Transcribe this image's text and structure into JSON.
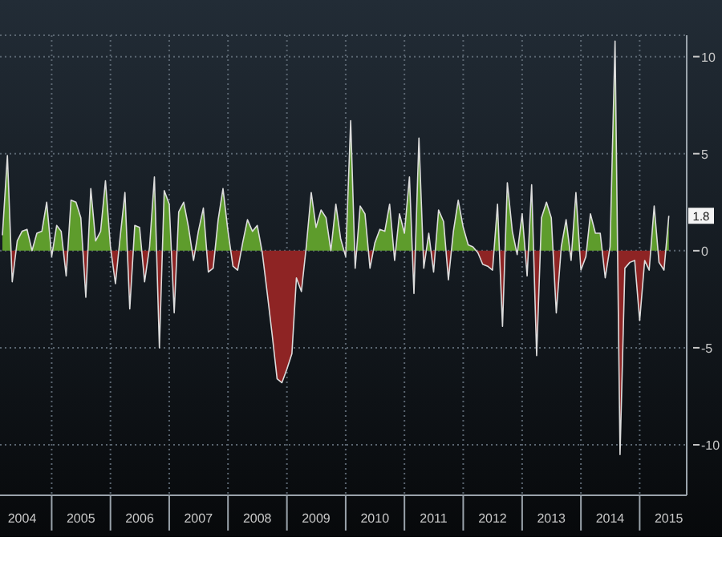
{
  "chart_data": {
    "type": "area",
    "x": [
      "2004-03",
      "2004-04",
      "2004-05",
      "2004-06",
      "2004-07",
      "2004-08",
      "2004-09",
      "2004-10",
      "2004-11",
      "2004-12",
      "2005-01",
      "2005-02",
      "2005-03",
      "2005-04",
      "2005-05",
      "2005-06",
      "2005-07",
      "2005-08",
      "2005-09",
      "2005-10",
      "2005-11",
      "2005-12",
      "2006-01",
      "2006-02",
      "2006-03",
      "2006-04",
      "2006-05",
      "2006-06",
      "2006-07",
      "2006-08",
      "2006-09",
      "2006-10",
      "2006-11",
      "2006-12",
      "2007-01",
      "2007-02",
      "2007-03",
      "2007-04",
      "2007-05",
      "2007-06",
      "2007-07",
      "2007-08",
      "2007-09",
      "2007-10",
      "2007-11",
      "2007-12",
      "2008-01",
      "2008-02",
      "2008-03",
      "2008-04",
      "2008-05",
      "2008-06",
      "2008-07",
      "2008-08",
      "2008-09",
      "2008-10",
      "2008-11",
      "2008-12",
      "2009-01",
      "2009-02",
      "2009-03",
      "2009-04",
      "2009-05",
      "2009-06",
      "2009-07",
      "2009-08",
      "2009-09",
      "2009-10",
      "2009-11",
      "2009-12",
      "2010-01",
      "2010-02",
      "2010-03",
      "2010-04",
      "2010-05",
      "2010-06",
      "2010-07",
      "2010-08",
      "2010-09",
      "2010-10",
      "2010-11",
      "2010-12",
      "2011-01",
      "2011-02",
      "2011-03",
      "2011-04",
      "2011-05",
      "2011-06",
      "2011-07",
      "2011-08",
      "2011-09",
      "2011-10",
      "2011-11",
      "2011-12",
      "2012-01",
      "2012-02",
      "2012-03",
      "2012-04",
      "2012-05",
      "2012-06",
      "2012-07",
      "2012-08",
      "2012-09",
      "2012-10",
      "2012-11",
      "2012-12",
      "2013-01",
      "2013-02",
      "2013-03",
      "2013-04",
      "2013-05",
      "2013-06",
      "2013-07",
      "2013-08",
      "2013-09",
      "2013-10",
      "2013-11",
      "2013-12",
      "2014-01",
      "2014-02",
      "2014-03",
      "2014-04",
      "2014-05",
      "2014-06",
      "2014-07",
      "2014-08",
      "2014-09",
      "2014-10",
      "2014-11",
      "2014-12",
      "2015-01",
      "2015-02",
      "2015-03",
      "2015-04",
      "2015-05",
      "2015-06",
      "2015-07"
    ],
    "series": [
      {
        "values": [
          0.8,
          4.9,
          -1.6,
          0.5,
          1.0,
          1.1,
          0.0,
          0.9,
          1.0,
          2.5,
          -0.3,
          1.3,
          1.0,
          -1.3,
          2.6,
          2.5,
          1.7,
          -2.4,
          3.2,
          0.5,
          1.0,
          3.6,
          0.2,
          -1.7,
          0.6,
          3.0,
          -3.0,
          1.3,
          1.2,
          -1.6,
          0.2,
          3.8,
          -5.0,
          3.1,
          2.4,
          -3.2,
          2.0,
          2.5,
          1.2,
          -0.5,
          1.0,
          2.2,
          -1.1,
          -0.9,
          1.6,
          3.2,
          1.0,
          -0.8,
          -1.0,
          0.4,
          1.6,
          1.0,
          1.3,
          -0.1,
          -2.2,
          -4.3,
          -6.6,
          -6.8,
          -6.1,
          -5.3,
          -1.4,
          -2.1,
          0.2,
          3.0,
          1.2,
          2.1,
          1.7,
          0.0,
          2.4,
          0.6,
          -0.3,
          6.7,
          -0.9,
          2.3,
          1.9,
          -0.9,
          0.4,
          1.1,
          1.0,
          2.4,
          -0.5,
          1.9,
          0.9,
          3.8,
          -2.2,
          5.8,
          -0.9,
          0.9,
          -1.1,
          2.1,
          1.5,
          -1.5,
          1.0,
          2.6,
          1.2,
          0.3,
          0.2,
          -0.1,
          -0.7,
          -0.8,
          -1.0,
          2.4,
          -3.9,
          3.5,
          1.0,
          -0.2,
          1.9,
          -1.3,
          3.4,
          -5.4,
          1.7,
          2.5,
          1.7,
          -3.2,
          0.2,
          1.6,
          -0.5,
          3.0,
          -1.0,
          -0.3,
          1.9,
          0.9,
          0.9,
          -1.4,
          0.2,
          10.8,
          -10.5,
          -0.9,
          -0.6,
          -0.5,
          -3.6,
          -0.5,
          -1.0,
          2.3,
          -0.6,
          -1.0,
          1.8
        ],
        "colors": [
          "#5e9c2c",
          "#5e9c2c",
          "#8e2424",
          "#5e9c2c",
          "#5e9c2c",
          "#5e9c2c",
          "#5e9c2c",
          "#5e9c2c",
          "#5e9c2c",
          "#5e9c2c",
          "#8e2424",
          "#5e9c2c",
          "#5e9c2c",
          "#8e2424",
          "#5e9c2c",
          "#5e9c2c",
          "#5e9c2c",
          "#8e2424",
          "#5e9c2c",
          "#5e9c2c",
          "#5e9c2c",
          "#5e9c2c",
          "#5e9c2c",
          "#8e2424",
          "#5e9c2c",
          "#5e9c2c",
          "#8e2424",
          "#5e9c2c",
          "#5e9c2c",
          "#8e2424",
          "#5e9c2c",
          "#5e9c2c",
          "#8e2424",
          "#5e9c2c",
          "#5e9c2c",
          "#8e2424",
          "#5e9c2c",
          "#5e9c2c",
          "#5e9c2c",
          "#8e2424",
          "#5e9c2c",
          "#5e9c2c",
          "#8e2424",
          "#8e2424",
          "#5e9c2c",
          "#5e9c2c",
          "#5e9c2c",
          "#8e2424",
          "#8e2424",
          "#5e9c2c",
          "#5e9c2c",
          "#5e9c2c",
          "#5e9c2c",
          "#8e2424",
          "#8e2424",
          "#8e2424",
          "#8e2424",
          "#8e2424",
          "#8e2424",
          "#8e2424",
          "#8e2424",
          "#8e2424",
          "#5e9c2c",
          "#5e9c2c",
          "#5e9c2c",
          "#5e9c2c",
          "#5e9c2c",
          "#5e9c2c",
          "#5e9c2c",
          "#5e9c2c",
          "#8e2424",
          "#5e9c2c",
          "#8e2424",
          "#5e9c2c",
          "#5e9c2c",
          "#8e2424",
          "#5e9c2c",
          "#5e9c2c",
          "#5e9c2c",
          "#5e9c2c",
          "#8e2424",
          "#5e9c2c",
          "#5e9c2c",
          "#5e9c2c",
          "#8e2424",
          "#5e9c2c",
          "#8e2424",
          "#5e9c2c",
          "#8e2424",
          "#5e9c2c",
          "#5e9c2c",
          "#8e2424",
          "#5e9c2c",
          "#5e9c2c",
          "#5e9c2c",
          "#5e9c2c",
          "#5e9c2c",
          "#8e2424",
          "#8e2424",
          "#8e2424",
          "#8e2424",
          "#5e9c2c",
          "#8e2424",
          "#5e9c2c",
          "#5e9c2c",
          "#8e2424",
          "#5e9c2c",
          "#8e2424",
          "#5e9c2c",
          "#8e2424",
          "#5e9c2c",
          "#5e9c2c",
          "#5e9c2c",
          "#8e2424",
          "#5e9c2c",
          "#5e9c2c",
          "#8e2424",
          "#5e9c2c",
          "#8e2424",
          "#8e2424",
          "#5e9c2c",
          "#5e9c2c",
          "#5e9c2c",
          "#8e2424",
          "#5e9c2c",
          "#5e9c2c",
          "#8e2424",
          "#8e2424",
          "#8e2424",
          "#8e2424",
          "#8e2424",
          "#8e2424",
          "#8e2424",
          "#5e9c2c",
          "#8e2424",
          "#8e2424",
          "#5e9c2c"
        ]
      }
    ],
    "xlim": [
      "2004-02-15",
      "2015-10-20"
    ],
    "xticks": [
      {
        "value": "2004-07-01",
        "label": "2004"
      },
      {
        "value": "2005-01-01",
        "label": null
      },
      {
        "value": "2005-07-01",
        "label": "2005"
      },
      {
        "value": "2006-01-01",
        "label": null
      },
      {
        "value": "2006-07-01",
        "label": "2006"
      },
      {
        "value": "2007-01-01",
        "label": null
      },
      {
        "value": "2007-07-01",
        "label": "2007"
      },
      {
        "value": "2008-01-01",
        "label": null
      },
      {
        "value": "2008-07-01",
        "label": "2008"
      },
      {
        "value": "2009-01-01",
        "label": null
      },
      {
        "value": "2009-07-01",
        "label": "2009"
      },
      {
        "value": "2010-01-01",
        "label": null
      },
      {
        "value": "2010-07-01",
        "label": "2010"
      },
      {
        "value": "2011-01-01",
        "label": null
      },
      {
        "value": "2011-07-01",
        "label": "2011"
      },
      {
        "value": "2012-01-01",
        "label": null
      },
      {
        "value": "2012-07-01",
        "label": "2012"
      },
      {
        "value": "2013-01-01",
        "label": null
      },
      {
        "value": "2013-07-01",
        "label": "2013"
      },
      {
        "value": "2014-01-01",
        "label": null
      },
      {
        "value": "2014-07-01",
        "label": "2014"
      },
      {
        "value": "2015-01-01",
        "label": null
      },
      {
        "value": "2015-07-01",
        "label": "2015"
      }
    ],
    "ylim": [
      -12.6,
      11.1
    ],
    "yticks": [
      -10,
      -5,
      0,
      5,
      10
    ],
    "grid": true,
    "annotations": [
      {
        "text": "1.8",
        "x": "2015-07",
        "y": 1.8
      }
    ]
  }
}
